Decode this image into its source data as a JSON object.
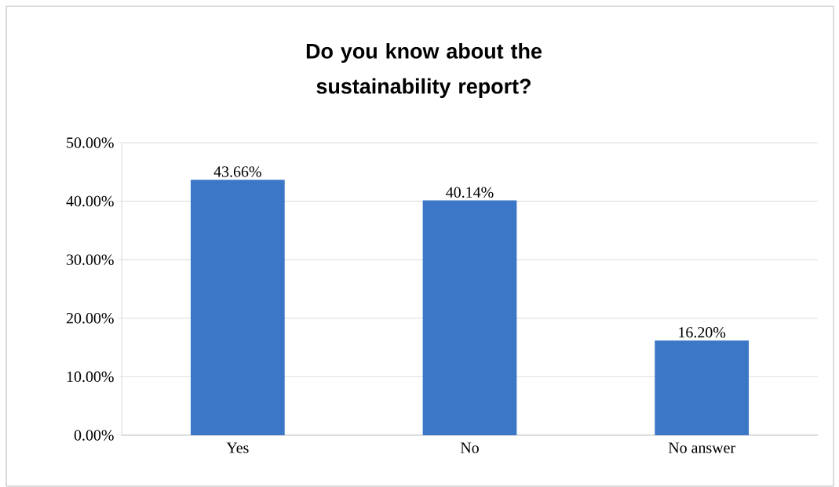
{
  "chart_data": {
    "type": "bar",
    "title": "Do you know about the sustainability report?",
    "categories": [
      "Yes",
      "No",
      "No answer"
    ],
    "values": [
      43.66,
      40.14,
      16.2
    ],
    "value_labels": [
      "43.66%",
      "40.14%",
      "16.20%"
    ],
    "color": "#3b77c6",
    "ylim": [
      0,
      50
    ],
    "yticks": [
      {
        "value": 0,
        "label": "0.00%"
      },
      {
        "value": 10,
        "label": "10.00%"
      },
      {
        "value": 20,
        "label": "20.00%"
      },
      {
        "value": 30,
        "label": "30.00%"
      },
      {
        "value": 40,
        "label": "40.00%"
      },
      {
        "value": 50,
        "label": "50.00%"
      }
    ],
    "grid": "y"
  }
}
